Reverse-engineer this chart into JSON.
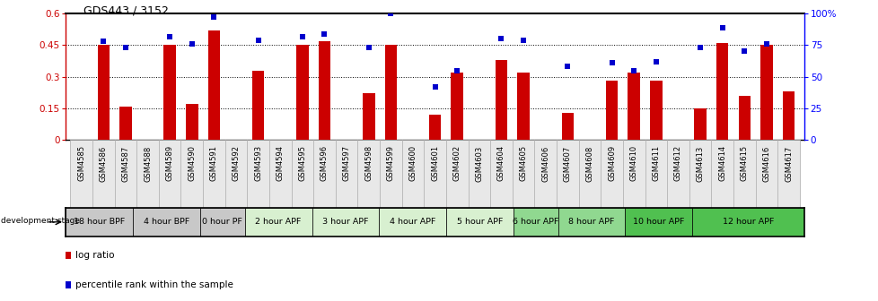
{
  "title": "GDS443 / 3152",
  "samples": [
    "GSM4585",
    "GSM4586",
    "GSM4587",
    "GSM4588",
    "GSM4589",
    "GSM4590",
    "GSM4591",
    "GSM4592",
    "GSM4593",
    "GSM4594",
    "GSM4595",
    "GSM4596",
    "GSM4597",
    "GSM4598",
    "GSM4599",
    "GSM4600",
    "GSM4601",
    "GSM4602",
    "GSM4603",
    "GSM4604",
    "GSM4605",
    "GSM4606",
    "GSM4607",
    "GSM4608",
    "GSM4609",
    "GSM4610",
    "GSM4611",
    "GSM4612",
    "GSM4613",
    "GSM4614",
    "GSM4615",
    "GSM4616",
    "GSM4617"
  ],
  "log_ratio": [
    0.0,
    0.45,
    0.16,
    0.0,
    0.45,
    0.17,
    0.52,
    0.0,
    0.33,
    0.0,
    0.45,
    0.47,
    0.0,
    0.22,
    0.45,
    0.0,
    0.12,
    0.32,
    0.0,
    0.38,
    0.32,
    0.0,
    0.13,
    0.0,
    0.28,
    0.32,
    0.28,
    0.0,
    0.15,
    0.46,
    0.21,
    0.45,
    0.23
  ],
  "percentile": [
    0.0,
    78,
    73,
    0.0,
    82,
    76,
    97,
    0.0,
    79,
    0.0,
    82,
    84,
    0.0,
    73,
    100,
    0.0,
    42,
    55,
    0.0,
    80,
    79,
    0.0,
    58,
    0.0,
    61,
    55,
    62,
    0.0,
    73,
    89,
    70,
    76,
    0.0
  ],
  "stages": [
    {
      "label": "18 hour BPF",
      "start": 0,
      "end": 3,
      "color": "#c8c8c8"
    },
    {
      "label": "4 hour BPF",
      "start": 3,
      "end": 6,
      "color": "#c8c8c8"
    },
    {
      "label": "0 hour PF",
      "start": 6,
      "end": 8,
      "color": "#c8c8c8"
    },
    {
      "label": "2 hour APF",
      "start": 8,
      "end": 11,
      "color": "#d8f0d0"
    },
    {
      "label": "3 hour APF",
      "start": 11,
      "end": 14,
      "color": "#d8f0d0"
    },
    {
      "label": "4 hour APF",
      "start": 14,
      "end": 17,
      "color": "#d8f0d0"
    },
    {
      "label": "5 hour APF",
      "start": 17,
      "end": 20,
      "color": "#d8f0d0"
    },
    {
      "label": "6 hour APF",
      "start": 20,
      "end": 22,
      "color": "#90d890"
    },
    {
      "label": "8 hour APF",
      "start": 22,
      "end": 25,
      "color": "#90d890"
    },
    {
      "label": "10 hour APF",
      "start": 25,
      "end": 28,
      "color": "#50c050"
    },
    {
      "label": "12 hour APF",
      "start": 28,
      "end": 33,
      "color": "#50c050"
    }
  ],
  "bar_color": "#cc0000",
  "dot_color": "#0000cc",
  "ylim_left": [
    0,
    0.6
  ],
  "yticks_left": [
    0,
    0.15,
    0.3,
    0.45,
    0.6
  ],
  "ytick_labels_left": [
    "0",
    "0.15",
    "0.3",
    "0.45",
    "0.6"
  ],
  "yticks_right": [
    0,
    25,
    50,
    75,
    100
  ],
  "ytick_labels_right": [
    "0",
    "25",
    "50",
    "75",
    "100%"
  ],
  "hlines": [
    0.15,
    0.3,
    0.45
  ]
}
